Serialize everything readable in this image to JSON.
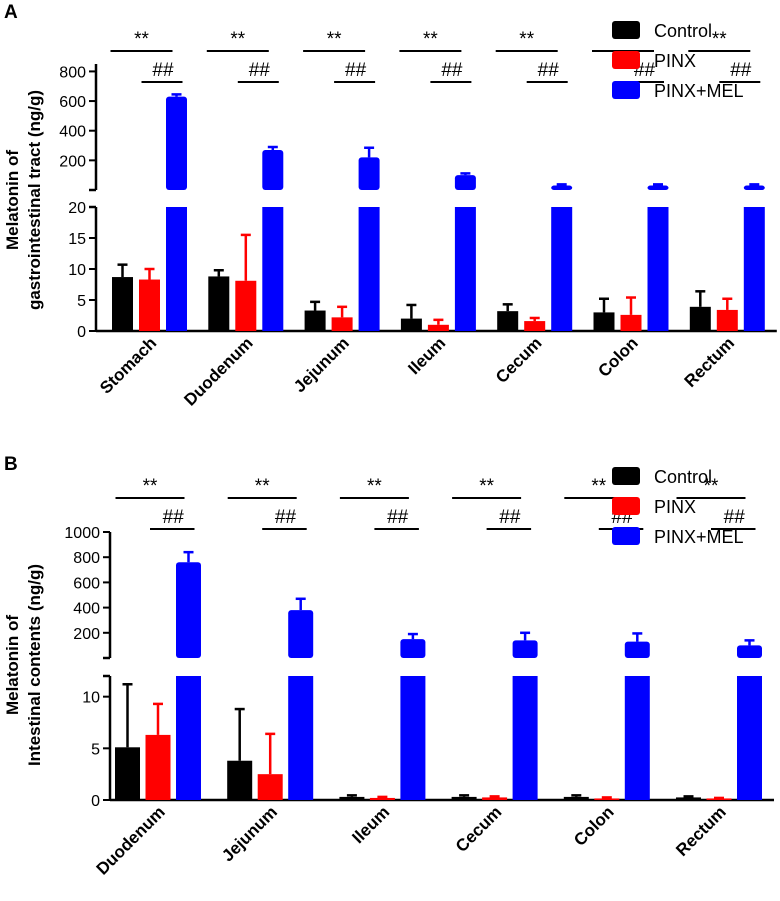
{
  "chart_data": [
    {
      "type": "bar",
      "panel": "A",
      "ylabel": [
        "Melatonin of",
        "gastrointestinal tract (ng/g)"
      ],
      "categories": [
        "Stomach",
        "Duodenum",
        "Jejunum",
        "Ileum",
        "Cecum",
        "Colon",
        "Rectum"
      ],
      "series": [
        {
          "name": "Control",
          "color": "#000000",
          "values": [
            8.7,
            8.8,
            3.3,
            2.0,
            3.2,
            3.0,
            3.9
          ],
          "errors": [
            2.0,
            1.0,
            1.4,
            2.2,
            1.1,
            2.2,
            2.5
          ]
        },
        {
          "name": "PINX",
          "color": "#ff0000",
          "values": [
            8.3,
            8.1,
            2.2,
            1.0,
            1.6,
            2.6,
            3.4
          ],
          "errors": [
            1.7,
            7.4,
            1.7,
            0.8,
            0.5,
            2.8,
            1.8
          ]
        },
        {
          "name": "PINX+MEL",
          "color": "#0000ff",
          "values": [
            630,
            270,
            220,
            100,
            30,
            30,
            30
          ],
          "errors": [
            15,
            20,
            65,
            12,
            8,
            8,
            8
          ]
        }
      ],
      "axis": {
        "lower": {
          "range": [
            0,
            20
          ],
          "ticks": [
            "0",
            "5",
            "10",
            "15",
            "20"
          ]
        },
        "upper": {
          "range": [
            0,
            850
          ],
          "ticks": [
            "200",
            "400",
            "600",
            "800"
          ]
        }
      },
      "annotations": {
        "vs_control": "**",
        "vs_pinx": "##"
      }
    },
    {
      "type": "bar",
      "panel": "B",
      "ylabel": [
        "Melatonin of",
        "Intestinal contents (ng/g)"
      ],
      "categories": [
        "Duodenum",
        "Jejunum",
        "Ileum",
        "Cecum",
        "Colon",
        "Rectum"
      ],
      "series": [
        {
          "name": "Control",
          "color": "#000000",
          "values": [
            5.1,
            3.8,
            0.3,
            0.3,
            0.3,
            0.25
          ],
          "errors": [
            6.1,
            5.0,
            0.15,
            0.15,
            0.15,
            0.1
          ]
        },
        {
          "name": "PINX",
          "color": "#ff0000",
          "values": [
            6.3,
            2.5,
            0.2,
            0.25,
            0.15,
            0.15
          ],
          "errors": [
            3.0,
            3.9,
            0.1,
            0.1,
            0.1,
            0.05
          ]
        },
        {
          "name": "PINX+MEL",
          "color": "#0000ff",
          "values": [
            760,
            380,
            150,
            140,
            130,
            100
          ],
          "errors": [
            80,
            90,
            40,
            60,
            65,
            40
          ]
        }
      ],
      "axis": {
        "lower": {
          "range": [
            0,
            12
          ],
          "ticks": [
            "0",
            "5",
            "10"
          ]
        },
        "upper": {
          "range": [
            0,
            1000
          ],
          "ticks": [
            "200",
            "400",
            "600",
            "800",
            "1000"
          ]
        }
      },
      "annotations": {
        "vs_control": "**",
        "vs_pinx": "##"
      }
    }
  ]
}
